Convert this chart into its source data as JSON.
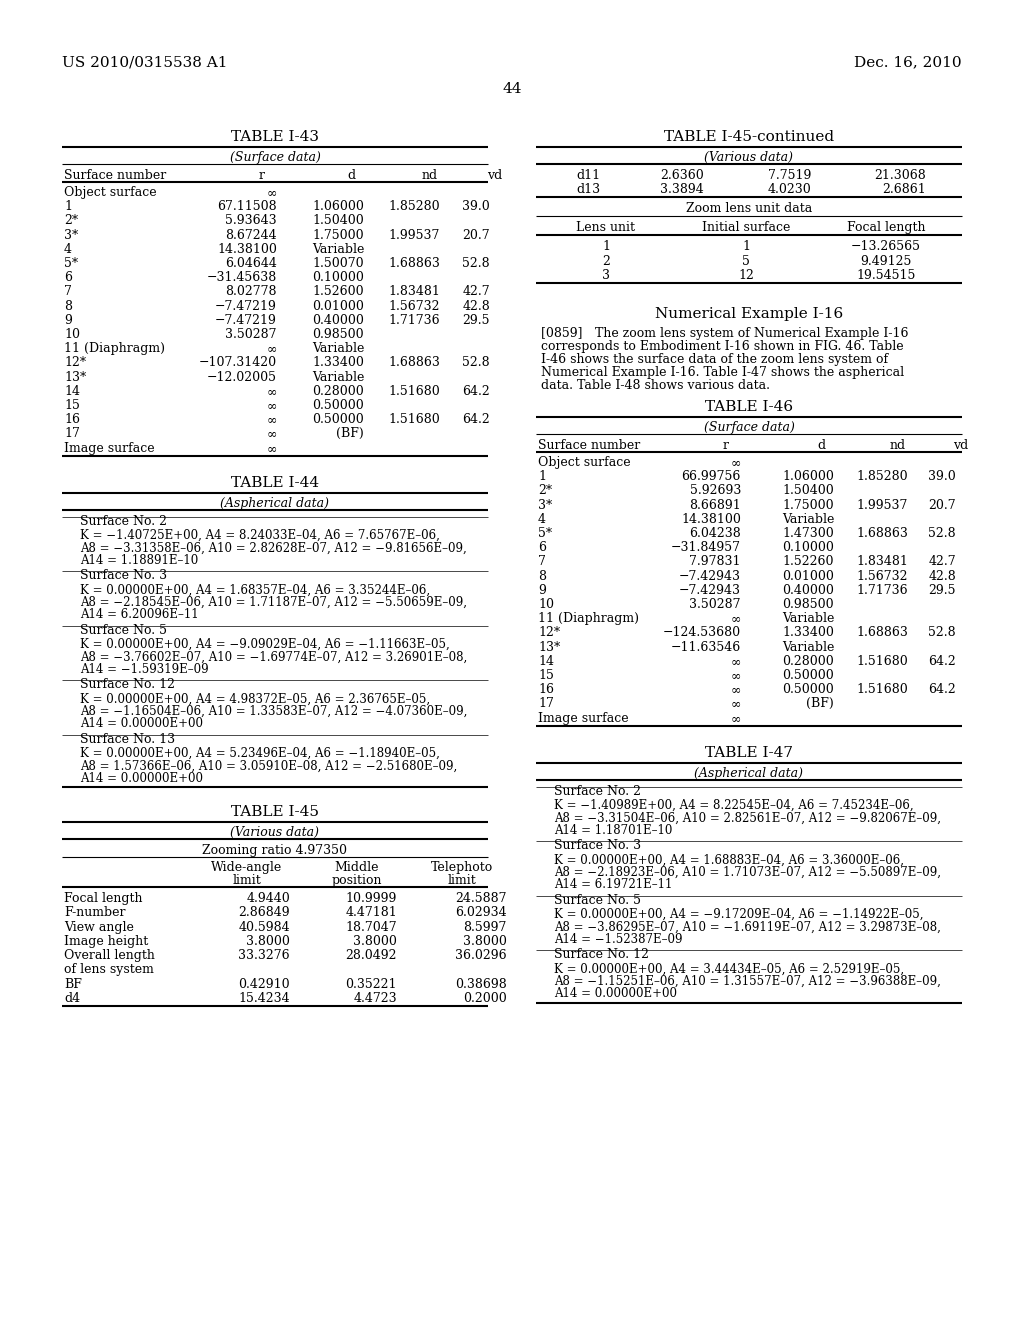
{
  "page_number": "44",
  "patent_number": "US 2010/0315538 A1",
  "patent_date": "Dec. 16, 2010",
  "background_color": "#ffffff",
  "table_i43_title": "TABLE I-43",
  "table_i43_subtitle": "(Surface data)",
  "table_i43_rows": [
    [
      "Object surface",
      "∞",
      "",
      "",
      ""
    ],
    [
      "1",
      "67.11508",
      "1.06000",
      "1.85280",
      "39.0"
    ],
    [
      "2*",
      "5.93643",
      "1.50400",
      "",
      ""
    ],
    [
      "3*",
      "8.67244",
      "1.75000",
      "1.99537",
      "20.7"
    ],
    [
      "4",
      "14.38100",
      "Variable",
      "",
      ""
    ],
    [
      "5*",
      "6.04644",
      "1.50070",
      "1.68863",
      "52.8"
    ],
    [
      "6",
      "−31.45638",
      "0.10000",
      "",
      ""
    ],
    [
      "7",
      "8.02778",
      "1.52600",
      "1.83481",
      "42.7"
    ],
    [
      "8",
      "−7.47219",
      "0.01000",
      "1.56732",
      "42.8"
    ],
    [
      "9",
      "−7.47219",
      "0.40000",
      "1.71736",
      "29.5"
    ],
    [
      "10",
      "3.50287",
      "0.98500",
      "",
      ""
    ],
    [
      "11 (Diaphragm)",
      "∞",
      "Variable",
      "",
      ""
    ],
    [
      "12*",
      "−107.31420",
      "1.33400",
      "1.68863",
      "52.8"
    ],
    [
      "13*",
      "−12.02005",
      "Variable",
      "",
      ""
    ],
    [
      "14",
      "∞",
      "0.28000",
      "1.51680",
      "64.2"
    ],
    [
      "15",
      "∞",
      "0.50000",
      "",
      ""
    ],
    [
      "16",
      "∞",
      "0.50000",
      "1.51680",
      "64.2"
    ],
    [
      "17",
      "∞",
      "(BF)",
      "",
      ""
    ],
    [
      "Image surface",
      "∞",
      "",
      "",
      ""
    ]
  ],
  "table_i44_title": "TABLE I-44",
  "table_i44_subtitle": "(Aspherical data)",
  "table_i44_blocks": [
    {
      "label": "Surface No. 2",
      "text": "K = −1.40725E+00, A4 = 8.24033E–04, A6 = 7.65767E–06,\nA8 = −3.31358E–06, A10 = 2.82628E–07, A12 = −9.81656E–09,\nA14 = 1.18891E–10"
    },
    {
      "label": "Surface No. 3",
      "text": "K = 0.00000E+00, A4 = 1.68357E–04, A6 = 3.35244E–06,\nA8 = −2.18545E–06, A10 = 1.71187E–07, A12 = −5.50659E–09,\nA14 = 6.20096E–11"
    },
    {
      "label": "Surface No. 5",
      "text": "K = 0.00000E+00, A4 = −9.09029E–04, A6 = −1.11663E–05,\nA8 = −3.76602E–07, A10 = −1.69774E–07, A12 = 3.26901E–08,\nA14 = −1.59319E–09"
    },
    {
      "label": "Surface No. 12",
      "text": "K = 0.00000E+00, A4 = 4.98372E–05, A6 = 2.36765E–05,\nA8 = −1.16504E–06, A10 = 1.33583E–07, A12 = −4.07360E–09,\nA14 = 0.00000E+00"
    },
    {
      "label": "Surface No. 13",
      "text": "K = 0.00000E+00, A4 = 5.23496E–04, A6 = −1.18940E–05,\nA8 = 1.57366E–06, A10 = 3.05910E–08, A12 = −2.51680E–09,\nA14 = 0.00000E+00"
    }
  ],
  "table_i45_title": "TABLE I-45",
  "table_i45_subtitle": "(Various data)",
  "table_i45_zoom": "Zooming ratio 4.97350",
  "table_i45_rows": [
    [
      "Focal length",
      "4.9440",
      "10.9999",
      "24.5887"
    ],
    [
      "F-number",
      "2.86849",
      "4.47181",
      "6.02934"
    ],
    [
      "View angle",
      "40.5984",
      "18.7047",
      "8.5997"
    ],
    [
      "Image height",
      "3.8000",
      "3.8000",
      "3.8000"
    ],
    [
      "Overall length",
      "33.3276",
      "28.0492",
      "36.0296"
    ],
    [
      "of lens system",
      "",
      "",
      ""
    ],
    [
      "BF",
      "0.42910",
      "0.35221",
      "0.38698"
    ],
    [
      "d4",
      "15.4234",
      "4.4723",
      "0.2000"
    ]
  ],
  "table_i45_cont_rows": [
    [
      "d11",
      "2.6360",
      "7.7519",
      "21.3068"
    ],
    [
      "d13",
      "3.3894",
      "4.0230",
      "2.6861"
    ]
  ],
  "table_i45_zoom_lens_title": "Zoom lens unit data",
  "table_i45_zoom_lens_rows": [
    [
      "1",
      "1",
      "−13.26565"
    ],
    [
      "2",
      "5",
      "9.49125"
    ],
    [
      "3",
      "12",
      "19.54515"
    ]
  ],
  "numerical_example_title": "Numerical Example I-16",
  "numerical_example_text": "[0859] The zoom lens system of Numerical Example I-16\ncorresponds to Embodiment I-16 shown in FIG. 46. Table\nI-46 shows the surface data of the zoom lens system of\nNumerical Example I-16. Table I-47 shows the aspherical\ndata. Table I-48 shows various data.",
  "table_i46_title": "TABLE I-46",
  "table_i46_subtitle": "(Surface data)",
  "table_i46_rows": [
    [
      "Object surface",
      "∞",
      "",
      "",
      ""
    ],
    [
      "1",
      "66.99756",
      "1.06000",
      "1.85280",
      "39.0"
    ],
    [
      "2*",
      "5.92693",
      "1.50400",
      "",
      ""
    ],
    [
      "3*",
      "8.66891",
      "1.75000",
      "1.99537",
      "20.7"
    ],
    [
      "4",
      "14.38100",
      "Variable",
      "",
      ""
    ],
    [
      "5*",
      "6.04238",
      "1.47300",
      "1.68863",
      "52.8"
    ],
    [
      "6",
      "−31.84957",
      "0.10000",
      "",
      ""
    ],
    [
      "7",
      "7.97831",
      "1.52260",
      "1.83481",
      "42.7"
    ],
    [
      "8",
      "−7.42943",
      "0.01000",
      "1.56732",
      "42.8"
    ],
    [
      "9",
      "−7.42943",
      "0.40000",
      "1.71736",
      "29.5"
    ],
    [
      "10",
      "3.50287",
      "0.98500",
      "",
      ""
    ],
    [
      "11 (Diaphragm)",
      "∞",
      "Variable",
      "",
      ""
    ],
    [
      "12*",
      "−124.53680",
      "1.33400",
      "1.68863",
      "52.8"
    ],
    [
      "13*",
      "−11.63546",
      "Variable",
      "",
      ""
    ],
    [
      "14",
      "∞",
      "0.28000",
      "1.51680",
      "64.2"
    ],
    [
      "15",
      "∞",
      "0.50000",
      "",
      ""
    ],
    [
      "16",
      "∞",
      "0.50000",
      "1.51680",
      "64.2"
    ],
    [
      "17",
      "∞",
      "(BF)",
      "",
      ""
    ],
    [
      "Image surface",
      "∞",
      "",
      "",
      ""
    ]
  ],
  "table_i47_title": "TABLE I-47",
  "table_i47_subtitle": "(Aspherical data)",
  "table_i47_blocks": [
    {
      "label": "Surface No. 2",
      "text": "K = −1.40989E+00, A4 = 8.22545E–04, A6 = 7.45234E–06,\nA8 = −3.31504E–06, A10 = 2.82561E–07, A12 = −9.82067E–09,\nA14 = 1.18701E–10"
    },
    {
      "label": "Surface No. 3",
      "text": "K = 0.00000E+00, A4 = 1.68883E–04, A6 = 3.36000E–06,\nA8 = −2.18923E–06, A10 = 1.71073E–07, A12 = −5.50897E–09,\nA14 = 6.19721E–11"
    },
    {
      "label": "Surface No. 5",
      "text": "K = 0.00000E+00, A4 = −9.17209E–04, A6 = −1.14922E–05,\nA8 = −3.86295E–07, A10 = −1.69119E–07, A12 = 3.29873E–08,\nA14 = −1.52387E–09"
    },
    {
      "label": "Surface No. 12",
      "text": "K = 0.00000E+00, A4 = 3.44434E–05, A6 = 2.52919E–05,\nA8 = −1.15251E–06, A10 = 1.31557E–07, A12 = −3.96388E–09,\nA14 = 0.00000E+00"
    }
  ]
}
